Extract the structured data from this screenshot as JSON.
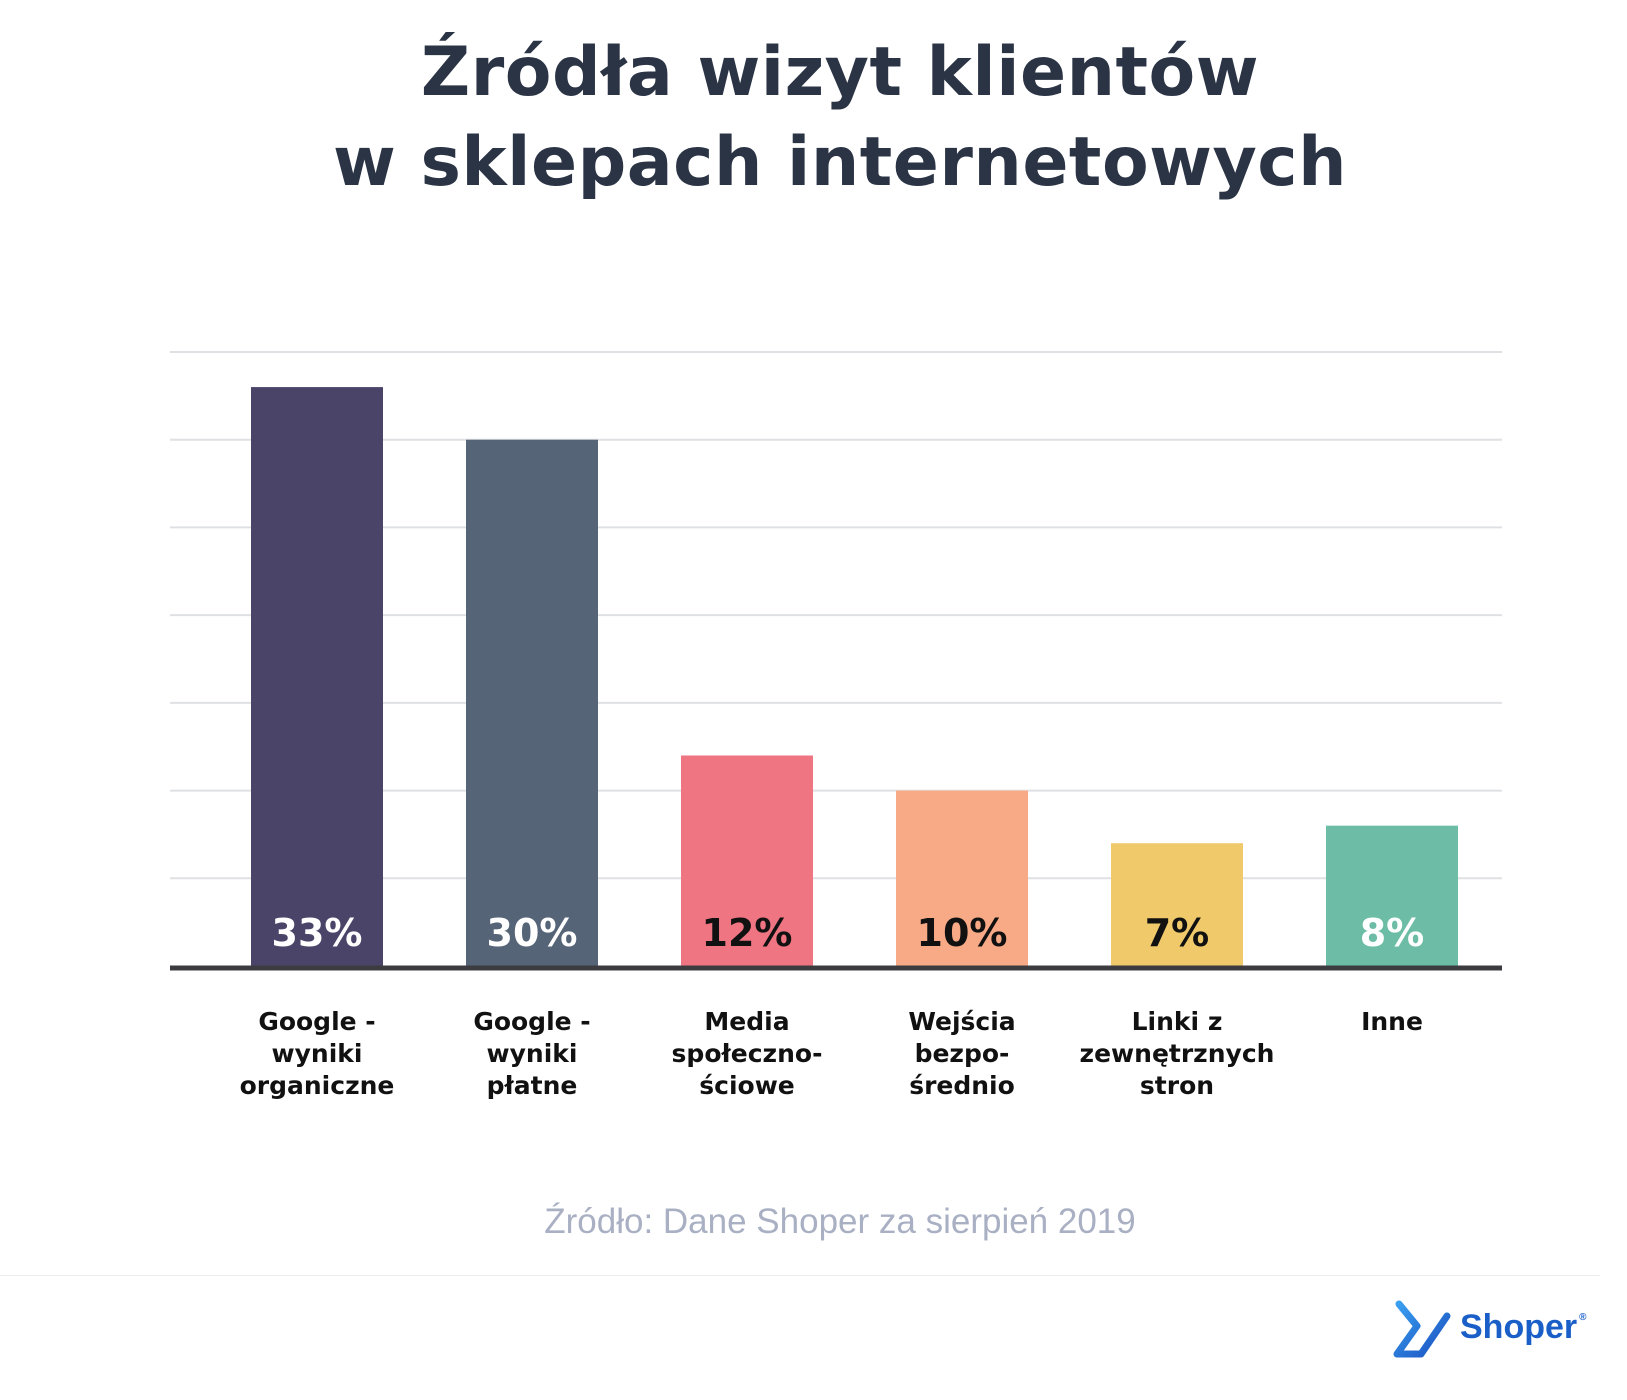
{
  "title": {
    "line1": "Źródła wizyt klientów",
    "line2": "w sklepach internetowych"
  },
  "source": "Źródło: Dane Shoper za sierpień 2019",
  "logo": {
    "text": "Shoper",
    "mark": "®",
    "icon": "shoper-logo-icon"
  },
  "colors": {
    "title": "#2b3445",
    "bars": [
      "#4a4469",
      "#566478",
      "#f07582",
      "#f8aa86",
      "#f0ca6a",
      "#6dbda6"
    ],
    "value_labels": [
      "#ffffff",
      "#ffffff",
      "#111111",
      "#111111",
      "#111111",
      "#ffffff"
    ],
    "grid": "#dfe0e3",
    "axis": "#3c3c40",
    "source": "#a9b0c3",
    "logo": "#1a5fc8"
  },
  "chart_data": {
    "type": "bar",
    "title": "Źródła wizyt klientów w sklepach internetowych",
    "categories": [
      [
        "Google -",
        "wyniki",
        "organiczne"
      ],
      [
        "Google -",
        "wyniki",
        "płatne"
      ],
      [
        "Media",
        "społeczno-",
        "ściowe"
      ],
      [
        "Wejścia",
        "bezpo-",
        "średnio"
      ],
      [
        "Linki z",
        "zewnętrznych",
        "stron"
      ],
      [
        "Inne"
      ]
    ],
    "values": [
      33,
      30,
      12,
      10,
      7,
      8
    ],
    "value_labels": [
      "33%",
      "30%",
      "12%",
      "10%",
      "7%",
      "8%"
    ],
    "ylim": [
      0,
      35
    ],
    "grid_step": 5,
    "grid": true,
    "legend": false
  }
}
